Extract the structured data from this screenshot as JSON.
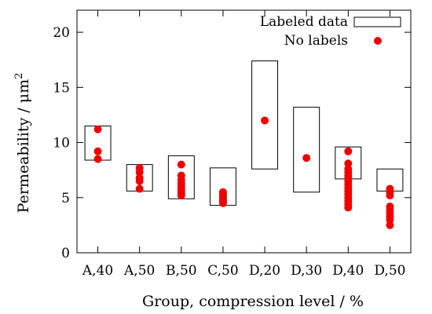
{
  "chart_data": {
    "type": "scatter",
    "title": "",
    "xlabel": "Group, compression level / %",
    "ylabel_main": "Permeability / μm",
    "ylabel_sup": "2",
    "ylim": [
      0,
      22
    ],
    "yticks": [
      0,
      5,
      10,
      15,
      20
    ],
    "categories": [
      "A,40",
      "A,50",
      "B,50",
      "C,50",
      "D,20",
      "D,30",
      "D,40",
      "D,50"
    ],
    "legend": {
      "position": "top-right",
      "boxes_label": "Labeled data",
      "points_label": "No labels"
    },
    "series": [
      {
        "name": "Labeled data",
        "style": "range-box",
        "ranges": [
          [
            8.4,
            11.5
          ],
          [
            5.6,
            8.0
          ],
          [
            4.9,
            8.8
          ],
          [
            4.3,
            7.7
          ],
          [
            7.6,
            17.4
          ],
          [
            5.5,
            13.2
          ],
          [
            6.7,
            9.6
          ],
          [
            5.6,
            7.6
          ]
        ]
      },
      {
        "name": "No labels",
        "style": "points",
        "color": "#ee0000",
        "points": [
          [
            "A,40",
            11.2
          ],
          [
            "A,40",
            9.2
          ],
          [
            "A,40",
            8.5
          ],
          [
            "A,50",
            7.7
          ],
          [
            "A,50",
            7.3
          ],
          [
            "A,50",
            6.8
          ],
          [
            "A,50",
            6.5
          ],
          [
            "A,50",
            5.8
          ],
          [
            "B,50",
            8.0
          ],
          [
            "B,50",
            7.0
          ],
          [
            "B,50",
            6.6
          ],
          [
            "B,50",
            6.3
          ],
          [
            "B,50",
            6.0
          ],
          [
            "B,50",
            5.8
          ],
          [
            "B,50",
            5.6
          ],
          [
            "B,50",
            5.4
          ],
          [
            "B,50",
            5.2
          ],
          [
            "C,50",
            5.5
          ],
          [
            "C,50",
            5.3
          ],
          [
            "C,50",
            5.1
          ],
          [
            "C,50",
            4.9
          ],
          [
            "C,50",
            4.7
          ],
          [
            "C,50",
            4.5
          ],
          [
            "D,20",
            12.0
          ],
          [
            "D,30",
            8.6
          ],
          [
            "D,40",
            9.2
          ],
          [
            "D,40",
            8.1
          ],
          [
            "D,40",
            7.6
          ],
          [
            "D,40",
            7.3
          ],
          [
            "D,40",
            7.0
          ],
          [
            "D,40",
            6.8
          ],
          [
            "D,40",
            6.5
          ],
          [
            "D,40",
            6.2
          ],
          [
            "D,40",
            5.9
          ],
          [
            "D,40",
            5.6
          ],
          [
            "D,40",
            5.3
          ],
          [
            "D,40",
            5.0
          ],
          [
            "D,40",
            4.7
          ],
          [
            "D,40",
            4.4
          ],
          [
            "D,40",
            4.1
          ],
          [
            "D,50",
            5.8
          ],
          [
            "D,50",
            5.5
          ],
          [
            "D,50",
            5.2
          ],
          [
            "D,50",
            4.2
          ],
          [
            "D,50",
            3.9
          ],
          [
            "D,50",
            3.6
          ],
          [
            "D,50",
            3.3
          ],
          [
            "D,50",
            3.0
          ],
          [
            "D,50",
            2.5
          ]
        ]
      }
    ]
  }
}
